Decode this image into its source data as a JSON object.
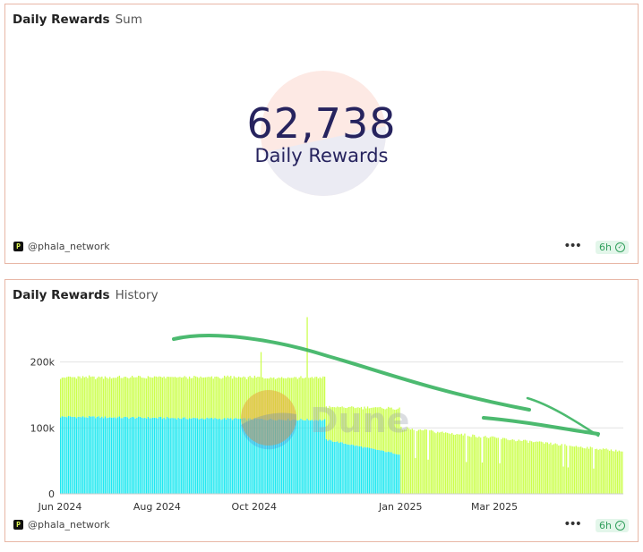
{
  "panels": {
    "sum": {
      "title": "Daily Rewards",
      "subtitle": "Sum",
      "owner": "@phala_network",
      "refresh": "6h",
      "counter": {
        "value": "62,738",
        "label": "Daily Rewards"
      }
    },
    "history": {
      "title": "Daily Rewards",
      "subtitle": "History",
      "owner": "@phala_network",
      "refresh": "6h",
      "watermark": "Dune"
    }
  },
  "colors": {
    "series_a": "#20e8f0",
    "series_b": "#ccff4d",
    "accent_green": "#2f9e5b",
    "border": "#e8b7a6"
  },
  "chart_data": {
    "type": "bar",
    "stacked": true,
    "x_axis": {
      "type": "date",
      "range": [
        "2024-06-01",
        "2025-05-20"
      ],
      "ticks": [
        {
          "date": "2024-06-01",
          "label": "Jun 2024"
        },
        {
          "date": "2024-08-01",
          "label": "Aug 2024"
        },
        {
          "date": "2024-10-01",
          "label": "Oct 2024"
        },
        {
          "date": "2025-01-01",
          "label": "Jan 2025"
        },
        {
          "date": "2025-03-01",
          "label": "Mar 2025"
        }
      ]
    },
    "y_axis": {
      "range": [
        0,
        270000
      ],
      "ticks": [
        0,
        100000,
        200000
      ],
      "tick_labels": [
        "0",
        "100k",
        "200k"
      ],
      "grid": true
    },
    "legend": "none",
    "series": [
      {
        "color": "#20e8f0",
        "segments": [
          {
            "from": "2024-06-01",
            "to": "2024-11-14",
            "values": [
              117000,
              112000
            ]
          },
          {
            "from": "2024-11-15",
            "to": "2024-12-31",
            "values": [
              82000,
              60000
            ]
          }
        ]
      },
      {
        "color": "#ccff4d",
        "segments": [
          {
            "from": "2024-06-01",
            "to": "2024-11-14",
            "values": [
              60000,
              65000
            ]
          },
          {
            "from": "2024-11-15",
            "to": "2024-12-31",
            "values": [
              50000,
              70000
            ]
          },
          {
            "from": "2025-01-01",
            "to": "2025-05-20",
            "values": [
              100000,
              65000
            ]
          }
        ]
      }
    ],
    "spikes": [
      {
        "date": "2024-10-05",
        "total": 215000
      },
      {
        "date": "2024-11-03",
        "total": 268000
      }
    ]
  }
}
